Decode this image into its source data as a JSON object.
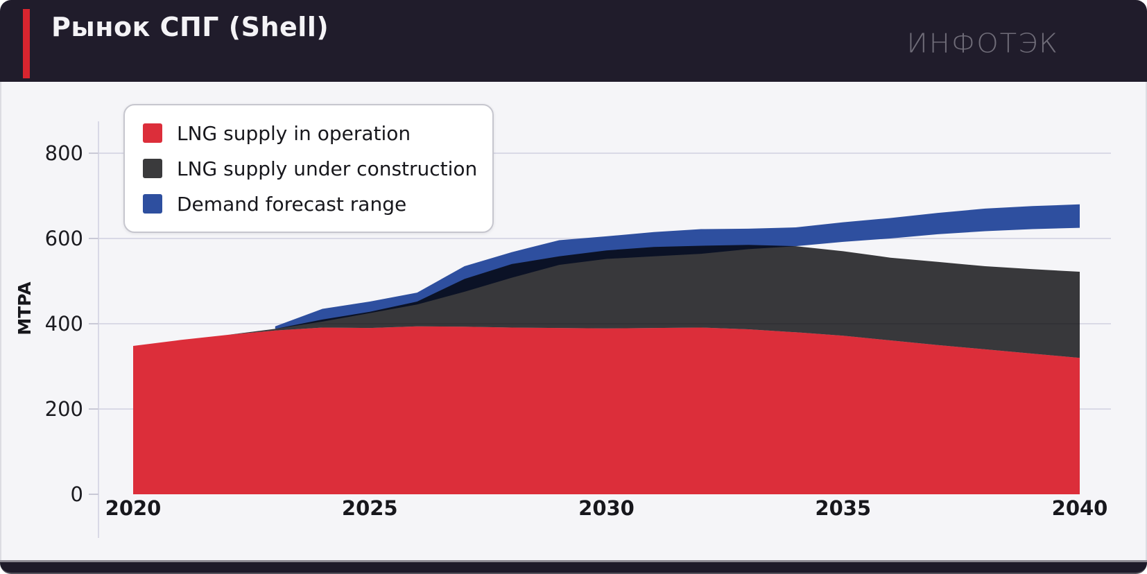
{
  "header": {
    "title": "Рынок СПГ (Shell)",
    "logo": "ИНФОТЭК",
    "accent_color": "#d8252f",
    "bg_color": "#201c2b"
  },
  "legend": {
    "items": [
      {
        "label": "LNG supply in operation",
        "color": "#dc2e3a"
      },
      {
        "label": "LNG supply under construction",
        "color": "#3a3a3c"
      },
      {
        "label": "Demand forecast range",
        "color": "#2e4f9f"
      }
    ]
  },
  "chart_data": {
    "type": "area",
    "title": "Рынок СПГ (Shell)",
    "xlabel": "",
    "ylabel": "MTPA",
    "x": [
      2020,
      2021,
      2022,
      2023,
      2024,
      2025,
      2026,
      2027,
      2028,
      2029,
      2030,
      2031,
      2032,
      2033,
      2034,
      2035,
      2036,
      2037,
      2038,
      2039,
      2040
    ],
    "x_ticks": [
      2020,
      2025,
      2030,
      2035,
      2040
    ],
    "y_ticks": [
      0,
      200,
      400,
      600,
      800
    ],
    "ylim": [
      0,
      850
    ],
    "grid": "horizontal",
    "legend_position": "top-left",
    "series": [
      {
        "name": "LNG supply in operation",
        "render": "stacked-area",
        "color": "#dc2e3a",
        "values": [
          348,
          362,
          374,
          384,
          391,
          390,
          394,
          393,
          391,
          390,
          389,
          390,
          391,
          387,
          380,
          372,
          361,
          350,
          340,
          330,
          320
        ]
      },
      {
        "name": "LNG supply under construction",
        "render": "stacked-area",
        "color": "#3a3a3c",
        "values": [
          0,
          0,
          0,
          4,
          19,
          38,
          58,
          112,
          149,
          168,
          183,
          190,
          192,
          198,
          202,
          198,
          194,
          195,
          195,
          198,
          202
        ]
      },
      {
        "name": "Demand forecast range",
        "render": "band",
        "color": "#2e4f9f",
        "min": [
          null,
          null,
          null,
          388,
          405,
          425,
          445,
          475,
          508,
          538,
          552,
          558,
          564,
          575,
          582,
          592,
          600,
          610,
          617,
          622,
          625
        ],
        "max": [
          null,
          null,
          null,
          394,
          435,
          452,
          473,
          535,
          568,
          596,
          605,
          615,
          622,
          623,
          626,
          638,
          648,
          660,
          670,
          676,
          680
        ]
      }
    ]
  }
}
